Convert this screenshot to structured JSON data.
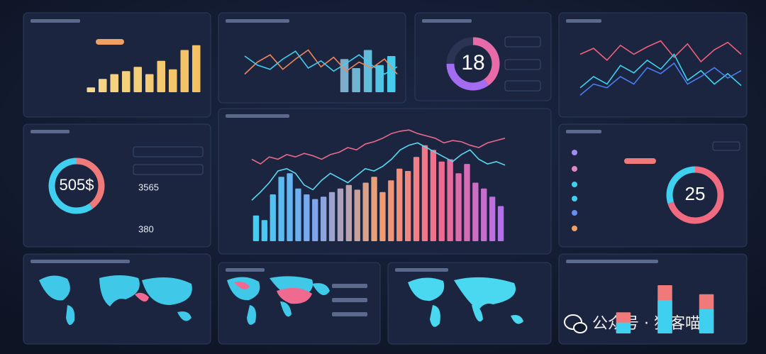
{
  "donuts": [
    {
      "label": "18",
      "segments": [
        {
          "color": "#e86aa8",
          "value": 40
        },
        {
          "color": "#a46cf0",
          "value": 35
        },
        {
          "color": "#2b3452",
          "value": 25
        }
      ]
    },
    {
      "label": "505$",
      "segments": [
        {
          "color": "#f07a7a",
          "value": 40
        },
        {
          "color": "#3fd0f0",
          "value": 60
        }
      ]
    },
    {
      "label": "25",
      "segments": [
        {
          "color": "#f06a80",
          "value": 70
        },
        {
          "color": "#3fd0f0",
          "value": 30
        }
      ]
    }
  ],
  "kpis": [
    "3565",
    "380"
  ],
  "charts": {
    "top_left": {
      "ylim": [
        0,
        100
      ],
      "bar_gradient": [
        "#f5d98a",
        "#f3c060"
      ],
      "bar_series": [
        {
          "values": [
            8,
            22,
            30,
            35,
            42,
            30,
            52,
            38,
            70,
            78
          ]
        }
      ],
      "lines": []
    },
    "top_middle": {
      "ylim": [
        0,
        100
      ],
      "bar_gradient": [
        "#f06a80",
        "#3fd0f0"
      ],
      "bar_series": [
        {
          "values": [
            0,
            0,
            0,
            0,
            0,
            0,
            0,
            0,
            55,
            40,
            70,
            45,
            60
          ]
        }
      ],
      "lines": [
        {
          "color": "#f0875a",
          "values": [
            30,
            50,
            62,
            38,
            55,
            70,
            42,
            58,
            35,
            50,
            40,
            55,
            30
          ]
        },
        {
          "color": "#3fd0f0",
          "values": [
            60,
            45,
            38,
            55,
            68,
            40,
            52,
            35,
            48,
            62,
            45,
            30,
            42
          ]
        }
      ]
    },
    "top_right": {
      "ylim": [
        0,
        100
      ],
      "bar_gradient": [
        "#3fd0f0",
        "#3fd0f0"
      ],
      "bar_series": [],
      "lines": [
        {
          "color": "#f0607a",
          "values": [
            70,
            78,
            62,
            82,
            70,
            80,
            88,
            66,
            84,
            60,
            76,
            86,
            70
          ]
        },
        {
          "color": "#3fd0f0",
          "values": [
            25,
            40,
            30,
            55,
            45,
            62,
            50,
            70,
            35,
            48,
            30,
            44,
            28
          ]
        },
        {
          "color": "#4a7cf0",
          "values": [
            15,
            30,
            25,
            40,
            30,
            52,
            44,
            58,
            30,
            40,
            52,
            38,
            48
          ]
        }
      ]
    },
    "center": {
      "ylim": [
        0,
        100
      ],
      "bar_gradient": [
        "#3fd0f0",
        "#7ea4f0",
        "#f0a070",
        "#f06a90",
        "#b070f0"
      ],
      "bar_series": [
        {
          "values": [
            22,
            18,
            40,
            55,
            58,
            45,
            40,
            36,
            38,
            42,
            45,
            48,
            44,
            50,
            55,
            42,
            52,
            62,
            60,
            72,
            82,
            78,
            68,
            70,
            58,
            66,
            50,
            45,
            38,
            30
          ]
        }
      ],
      "lines": [
        {
          "color": "#e86a8a",
          "values": [
            70,
            66,
            72,
            70,
            74,
            72,
            75,
            73,
            70,
            74,
            76,
            80,
            78,
            83,
            85,
            88,
            92,
            94,
            95,
            92,
            90,
            88,
            84,
            86,
            85,
            82,
            80,
            84,
            86,
            88
          ]
        },
        {
          "color": "#5ad8f0",
          "values": [
            35,
            42,
            50,
            60,
            62,
            58,
            48,
            44,
            52,
            58,
            54,
            50,
            56,
            62,
            60,
            64,
            70,
            78,
            82,
            84,
            80,
            76,
            72,
            68,
            74,
            78,
            70,
            66,
            68,
            65
          ]
        }
      ]
    },
    "bottom_right": {
      "ylim": [
        0,
        100
      ],
      "bar_gradient": [
        "#f07a7a",
        "#f07a7a"
      ],
      "bar_series": [
        {
          "values": [
            0,
            35,
            0,
            80,
            0,
            65,
            0
          ]
        },
        {
          "values": [
            0,
            18,
            0,
            55,
            0,
            40,
            0
          ],
          "color": "#3fd0f0"
        }
      ],
      "lines": []
    }
  },
  "watermark": "公众号 · 猎客喵"
}
